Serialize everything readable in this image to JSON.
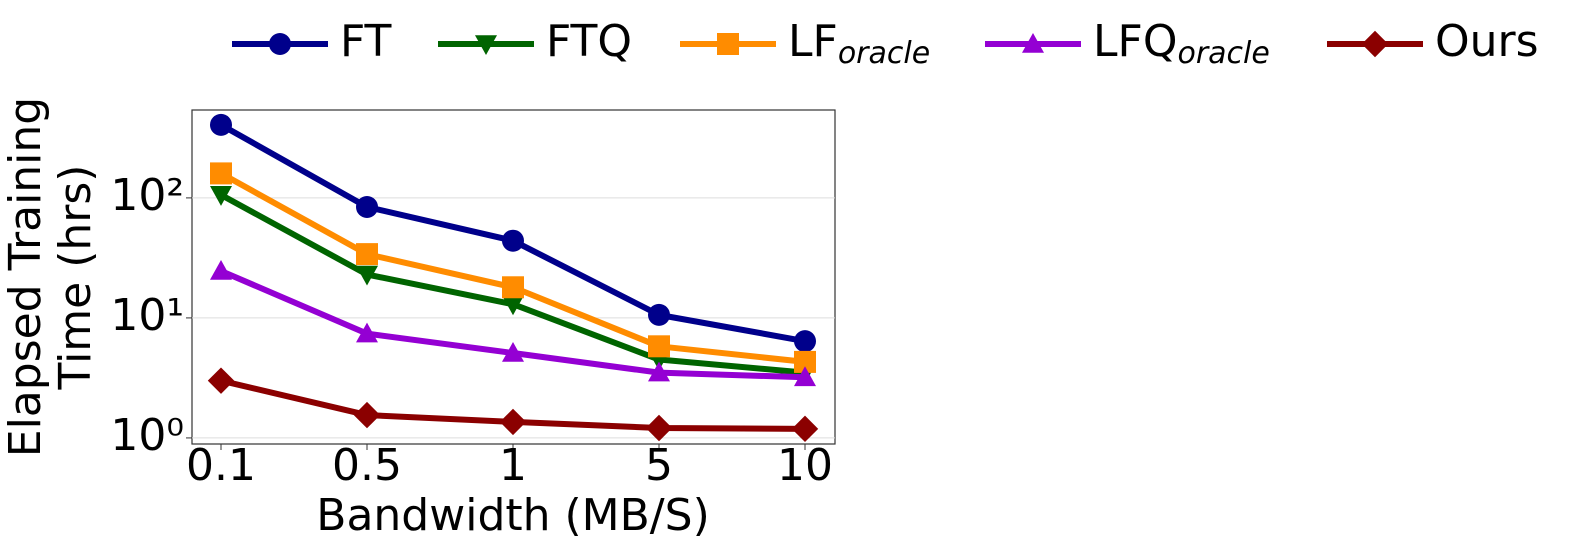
{
  "chart_data": {
    "type": "line",
    "xlabel": "Bandwidth (MB/S)",
    "ylabel": [
      "Elapsed Training",
      "Time (hrs)"
    ],
    "categories": [
      "0.1",
      "0.5",
      "1",
      "5",
      "10"
    ],
    "ylim": [
      0.89,
      540
    ],
    "log_y": true,
    "grid": true,
    "yticks": [
      {
        "value": 1,
        "label": "10⁰"
      },
      {
        "value": 10,
        "label": "10¹"
      },
      {
        "value": 100,
        "label": "10²"
      }
    ],
    "series": [
      {
        "name": "FT",
        "color": "#00008b",
        "marker": "circle",
        "values": [
          406,
          84,
          44,
          10.6,
          6.4
        ]
      },
      {
        "name": "FTQ",
        "color": "#006400",
        "marker": "triangle-down",
        "values": [
          106,
          23,
          13,
          4.5,
          3.5
        ]
      },
      {
        "name": "LF",
        "subscript": "oracle",
        "color": "#ff8c00",
        "marker": "square",
        "values": [
          160,
          34,
          18,
          5.8,
          4.3
        ]
      },
      {
        "name": "LFQ",
        "subscript": "oracle",
        "color": "#9400d3",
        "marker": "triangle-up",
        "values": [
          24.6,
          7.4,
          5.1,
          3.5,
          3.2
        ]
      },
      {
        "name": "Ours",
        "color": "#8b0000",
        "marker": "diamond",
        "values": [
          3.0,
          1.55,
          1.36,
          1.21,
          1.19
        ]
      }
    ]
  }
}
